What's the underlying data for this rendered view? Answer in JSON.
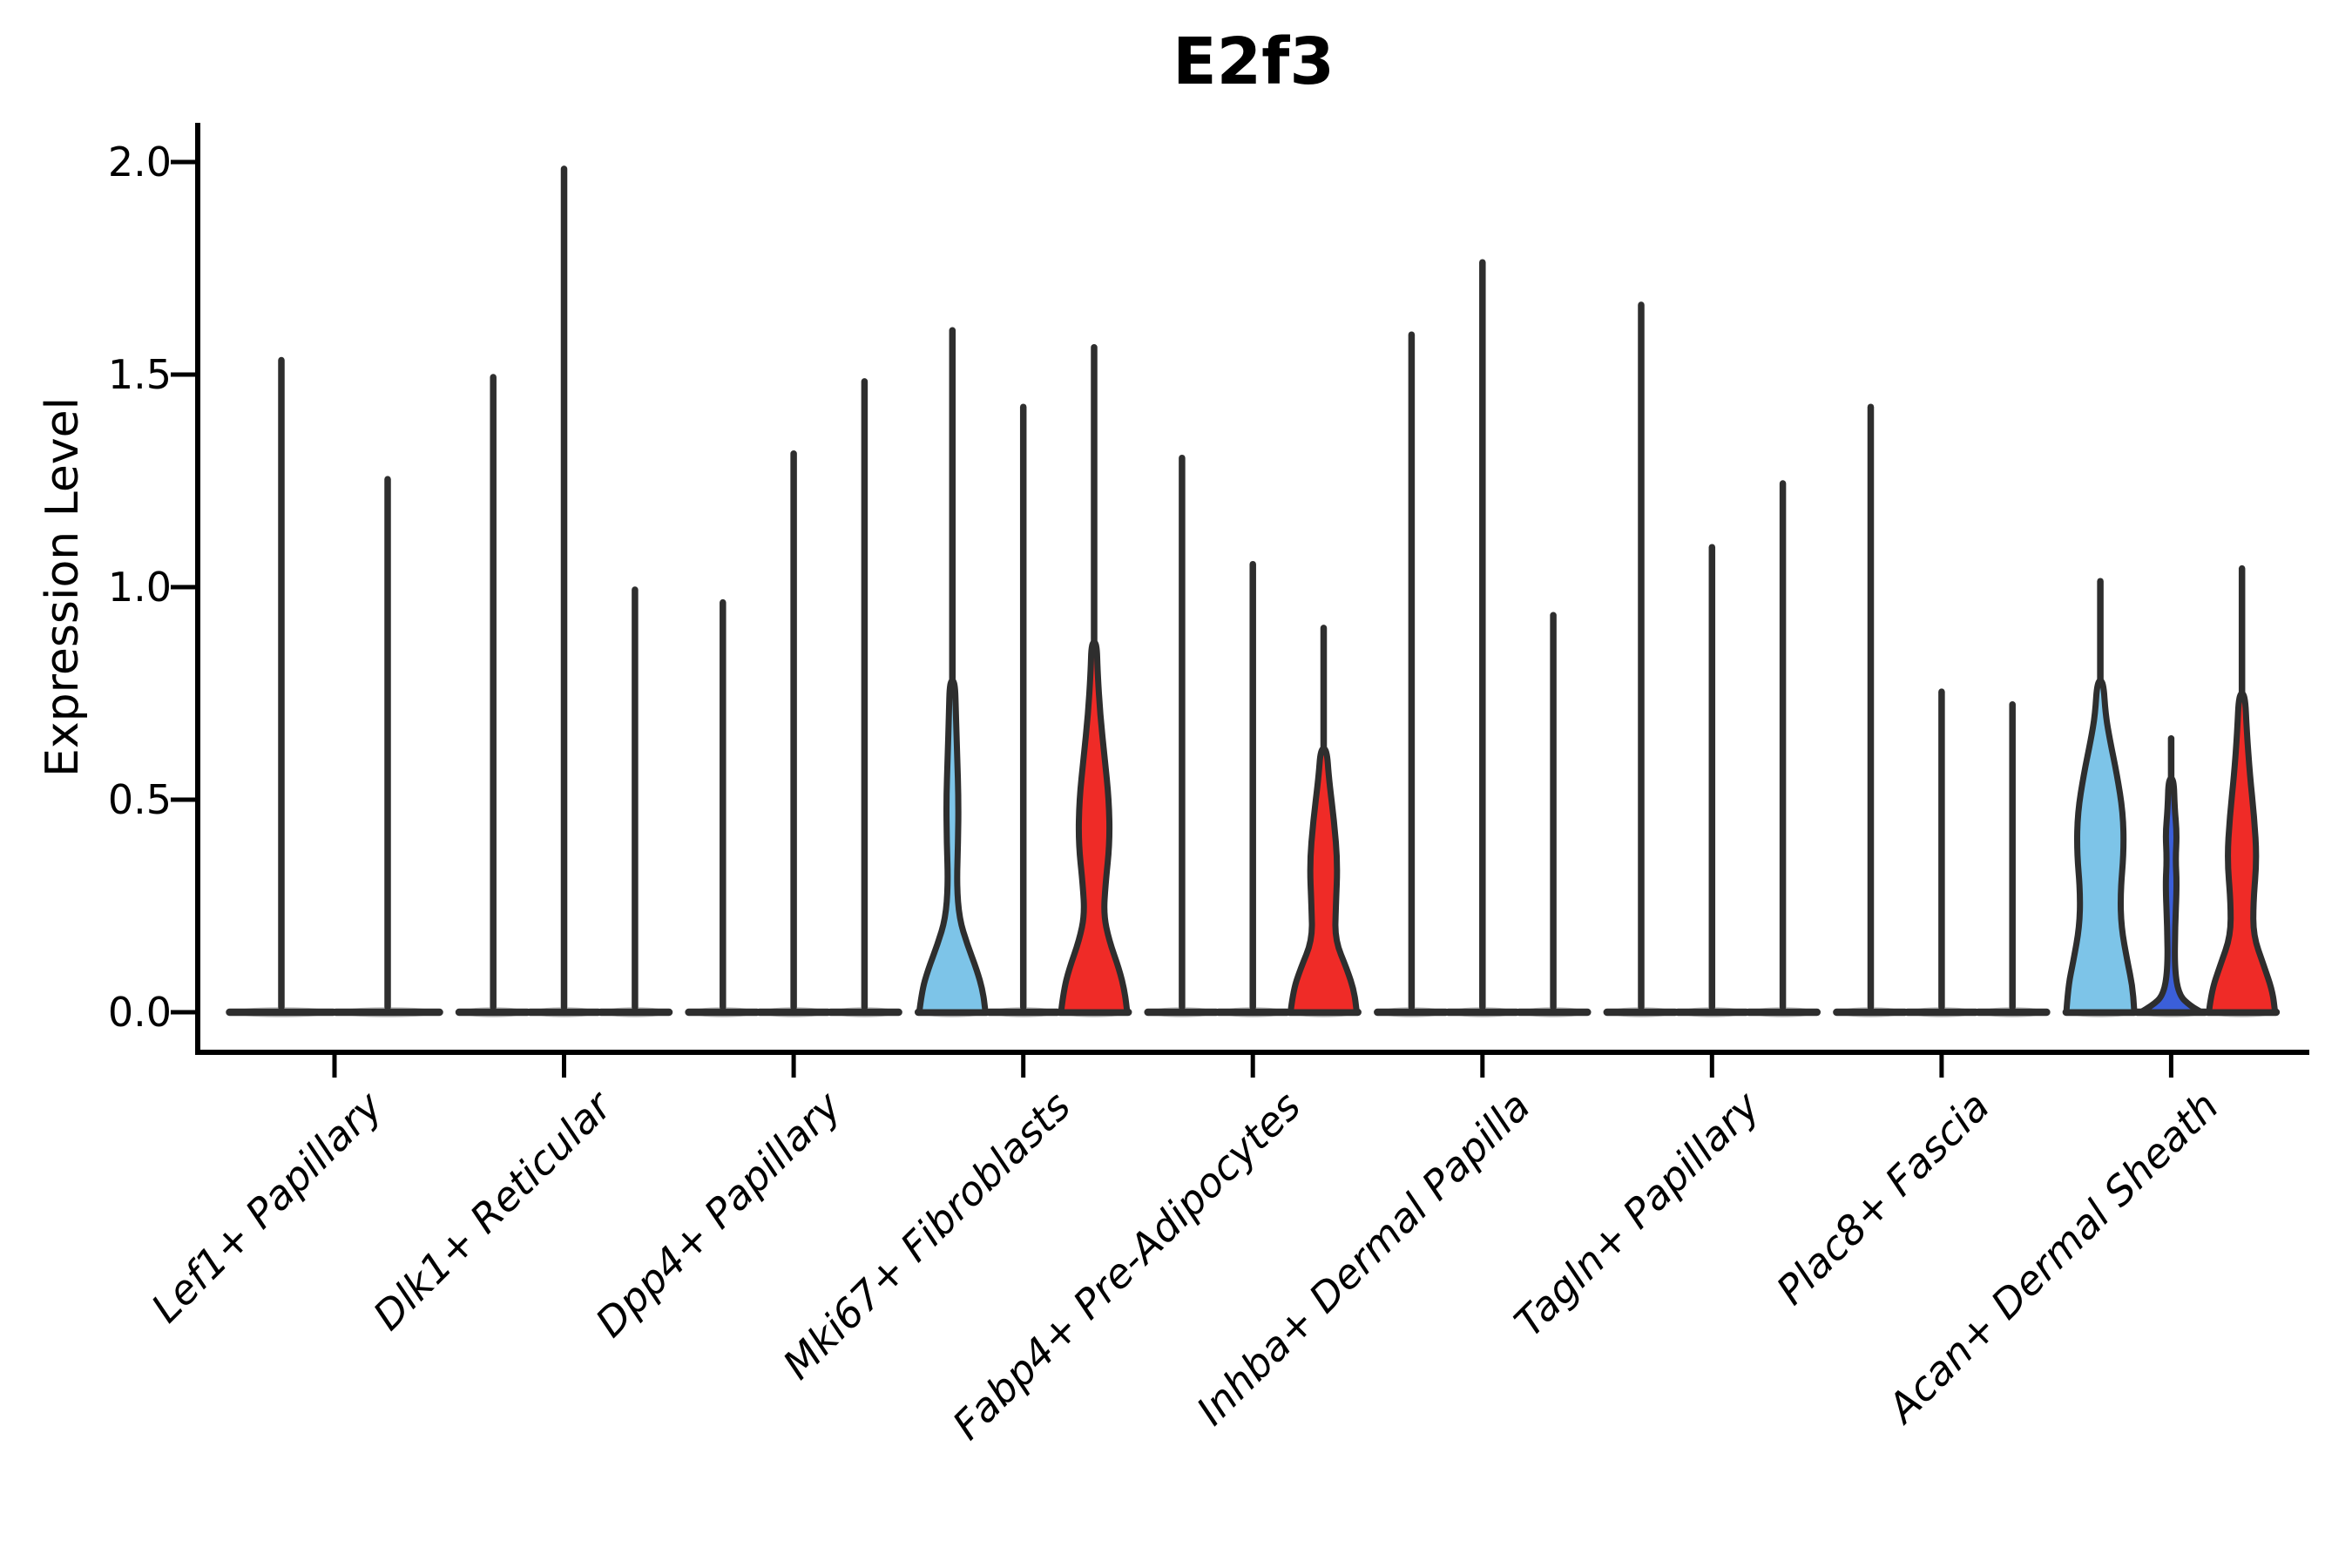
{
  "title": "E2f3",
  "y_axis": {
    "label": "Expression Level",
    "tick_labels": [
      "0.0",
      "0.5",
      "1.0",
      "1.5",
      "2.0"
    ]
  },
  "x_axis": {
    "categories": [
      "Lef1+ Papillary",
      "Dlk1+ Reticular",
      "Dpp4+ Papillary",
      "Mki67+ Fibroblasts",
      "Fabp4+ Pre-Adipocytes",
      "Inhba+ Dermal Papilla",
      "Tagln+ Papillary",
      "Plac8+ Fascia",
      "Acan+ Dermal Sheath"
    ]
  },
  "colors": {
    "light_blue": "#7DC4E8",
    "dark_blue": "#3B5FD9",
    "red": "#EF2B27",
    "outline": "#2E2E2E",
    "axis": "#000000",
    "baseline_shadow": "#9A9A9A"
  },
  "chart_data": {
    "type": "violin",
    "title": "E2f3",
    "xlabel": "",
    "ylabel": "Expression Level",
    "ylim": [
      0,
      2.09
    ],
    "yticks": [
      0,
      0.5,
      1.0,
      1.5,
      2.0
    ],
    "ytick_labels": [
      "0.0",
      "0.5",
      "1.0",
      "1.5",
      "2.0"
    ],
    "grid": false,
    "legend": "none",
    "categories": [
      "Lef1+ Papillary",
      "Dlk1+ Reticular",
      "Dpp4+ Papillary",
      "Mki67+ Fibroblasts",
      "Fabp4+ Pre-Adipocytes",
      "Inhba+ Dermal Papilla",
      "Tagln+ Papillary",
      "Plac8+ Fascia",
      "Acan+ Dermal Sheath"
    ],
    "groups": [
      {
        "category": "Lef1+ Papillary",
        "violins": [
          {
            "max": 1.54,
            "fill": "none"
          },
          {
            "max": 1.26,
            "fill": "none"
          }
        ]
      },
      {
        "category": "Dlk1+ Reticular",
        "violins": [
          {
            "max": 1.5,
            "fill": "none"
          },
          {
            "max": 1.99,
            "fill": "none"
          },
          {
            "max": 1.0,
            "fill": "none"
          }
        ]
      },
      {
        "category": "Dpp4+ Papillary",
        "violins": [
          {
            "max": 0.97,
            "fill": "none"
          },
          {
            "max": 1.32,
            "fill": "none"
          },
          {
            "max": 1.49,
            "fill": "none"
          }
        ]
      },
      {
        "category": "Mki67+ Fibroblasts",
        "violins": [
          {
            "max": 1.61,
            "fill": "#7DC4E8",
            "profile": [
              [
                0,
                38
              ],
              [
                0.05,
                35
              ],
              [
                0.1,
                28
              ],
              [
                0.16,
                17
              ],
              [
                0.22,
                8
              ],
              [
                0.3,
                5
              ],
              [
                0.4,
                6.5
              ],
              [
                0.5,
                7
              ],
              [
                0.6,
                5.5
              ],
              [
                0.7,
                4
              ],
              [
                0.78,
                3
              ]
            ]
          },
          {
            "max": 1.43,
            "fill": "none"
          },
          {
            "max": 1.57,
            "fill": "#EF2B27",
            "profile": [
              [
                0,
                38
              ],
              [
                0.05,
                35
              ],
              [
                0.1,
                29
              ],
              [
                0.17,
                17
              ],
              [
                0.23,
                11
              ],
              [
                0.3,
                13
              ],
              [
                0.4,
                18
              ],
              [
                0.5,
                17
              ],
              [
                0.6,
                12
              ],
              [
                0.7,
                7
              ],
              [
                0.8,
                4
              ],
              [
                0.87,
                3
              ]
            ]
          }
        ]
      },
      {
        "category": "Fabp4+ Pre-Adipocytes",
        "violins": [
          {
            "max": 1.31,
            "fill": "none"
          },
          {
            "max": 1.06,
            "fill": "none"
          },
          {
            "max": 0.91,
            "fill": "#EF2B27",
            "profile": [
              [
                0,
                38
              ],
              [
                0.05,
                35
              ],
              [
                0.1,
                27
              ],
              [
                0.17,
                13
              ],
              [
                0.25,
                14
              ],
              [
                0.35,
                16
              ],
              [
                0.45,
                12
              ],
              [
                0.55,
                6
              ],
              [
                0.62,
                3.5
              ]
            ]
          }
        ]
      },
      {
        "category": "Inhba+ Dermal Papilla",
        "violins": [
          {
            "max": 1.6,
            "fill": "none"
          },
          {
            "max": 1.77,
            "fill": "none"
          },
          {
            "max": 0.94,
            "fill": "none"
          }
        ]
      },
      {
        "category": "Tagln+ Papillary",
        "violins": [
          {
            "max": 1.67,
            "fill": "none"
          },
          {
            "max": 1.1,
            "fill": "none"
          },
          {
            "max": 1.25,
            "fill": "none"
          }
        ]
      },
      {
        "category": "Plac8+ Fascia",
        "violins": [
          {
            "max": 1.43,
            "fill": "none"
          },
          {
            "max": 0.76,
            "fill": "none"
          },
          {
            "max": 0.73,
            "fill": "none"
          }
        ]
      },
      {
        "category": "Acan+ Dermal Sheath",
        "violins": [
          {
            "max": 1.02,
            "fill": "#7DC4E8",
            "profile": [
              [
                0,
                39
              ],
              [
                0.06,
                37
              ],
              [
                0.12,
                31
              ],
              [
                0.2,
                24
              ],
              [
                0.28,
                23
              ],
              [
                0.38,
                27
              ],
              [
                0.47,
                26
              ],
              [
                0.56,
                19
              ],
              [
                0.64,
                11
              ],
              [
                0.7,
                6
              ],
              [
                0.78,
                3.5
              ]
            ]
          },
          {
            "max": 0.65,
            "fill": "#3B5FD9",
            "profile": [
              [
                0,
                35
              ],
              [
                0.015,
                22
              ],
              [
                0.04,
                9
              ],
              [
                0.1,
                4
              ],
              [
                0.2,
                4.5
              ],
              [
                0.3,
                6.5
              ],
              [
                0.36,
                5
              ],
              [
                0.42,
                6.5
              ],
              [
                0.48,
                4
              ],
              [
                0.55,
                3
              ]
            ]
          },
          {
            "max": 1.05,
            "fill": "#EF2B27",
            "profile": [
              [
                0,
                38
              ],
              [
                0.05,
                35
              ],
              [
                0.11,
                25
              ],
              [
                0.18,
                13
              ],
              [
                0.26,
                13
              ],
              [
                0.36,
                17
              ],
              [
                0.46,
                14
              ],
              [
                0.56,
                9
              ],
              [
                0.66,
                5.5
              ],
              [
                0.75,
                3.5
              ]
            ]
          }
        ]
      }
    ]
  }
}
